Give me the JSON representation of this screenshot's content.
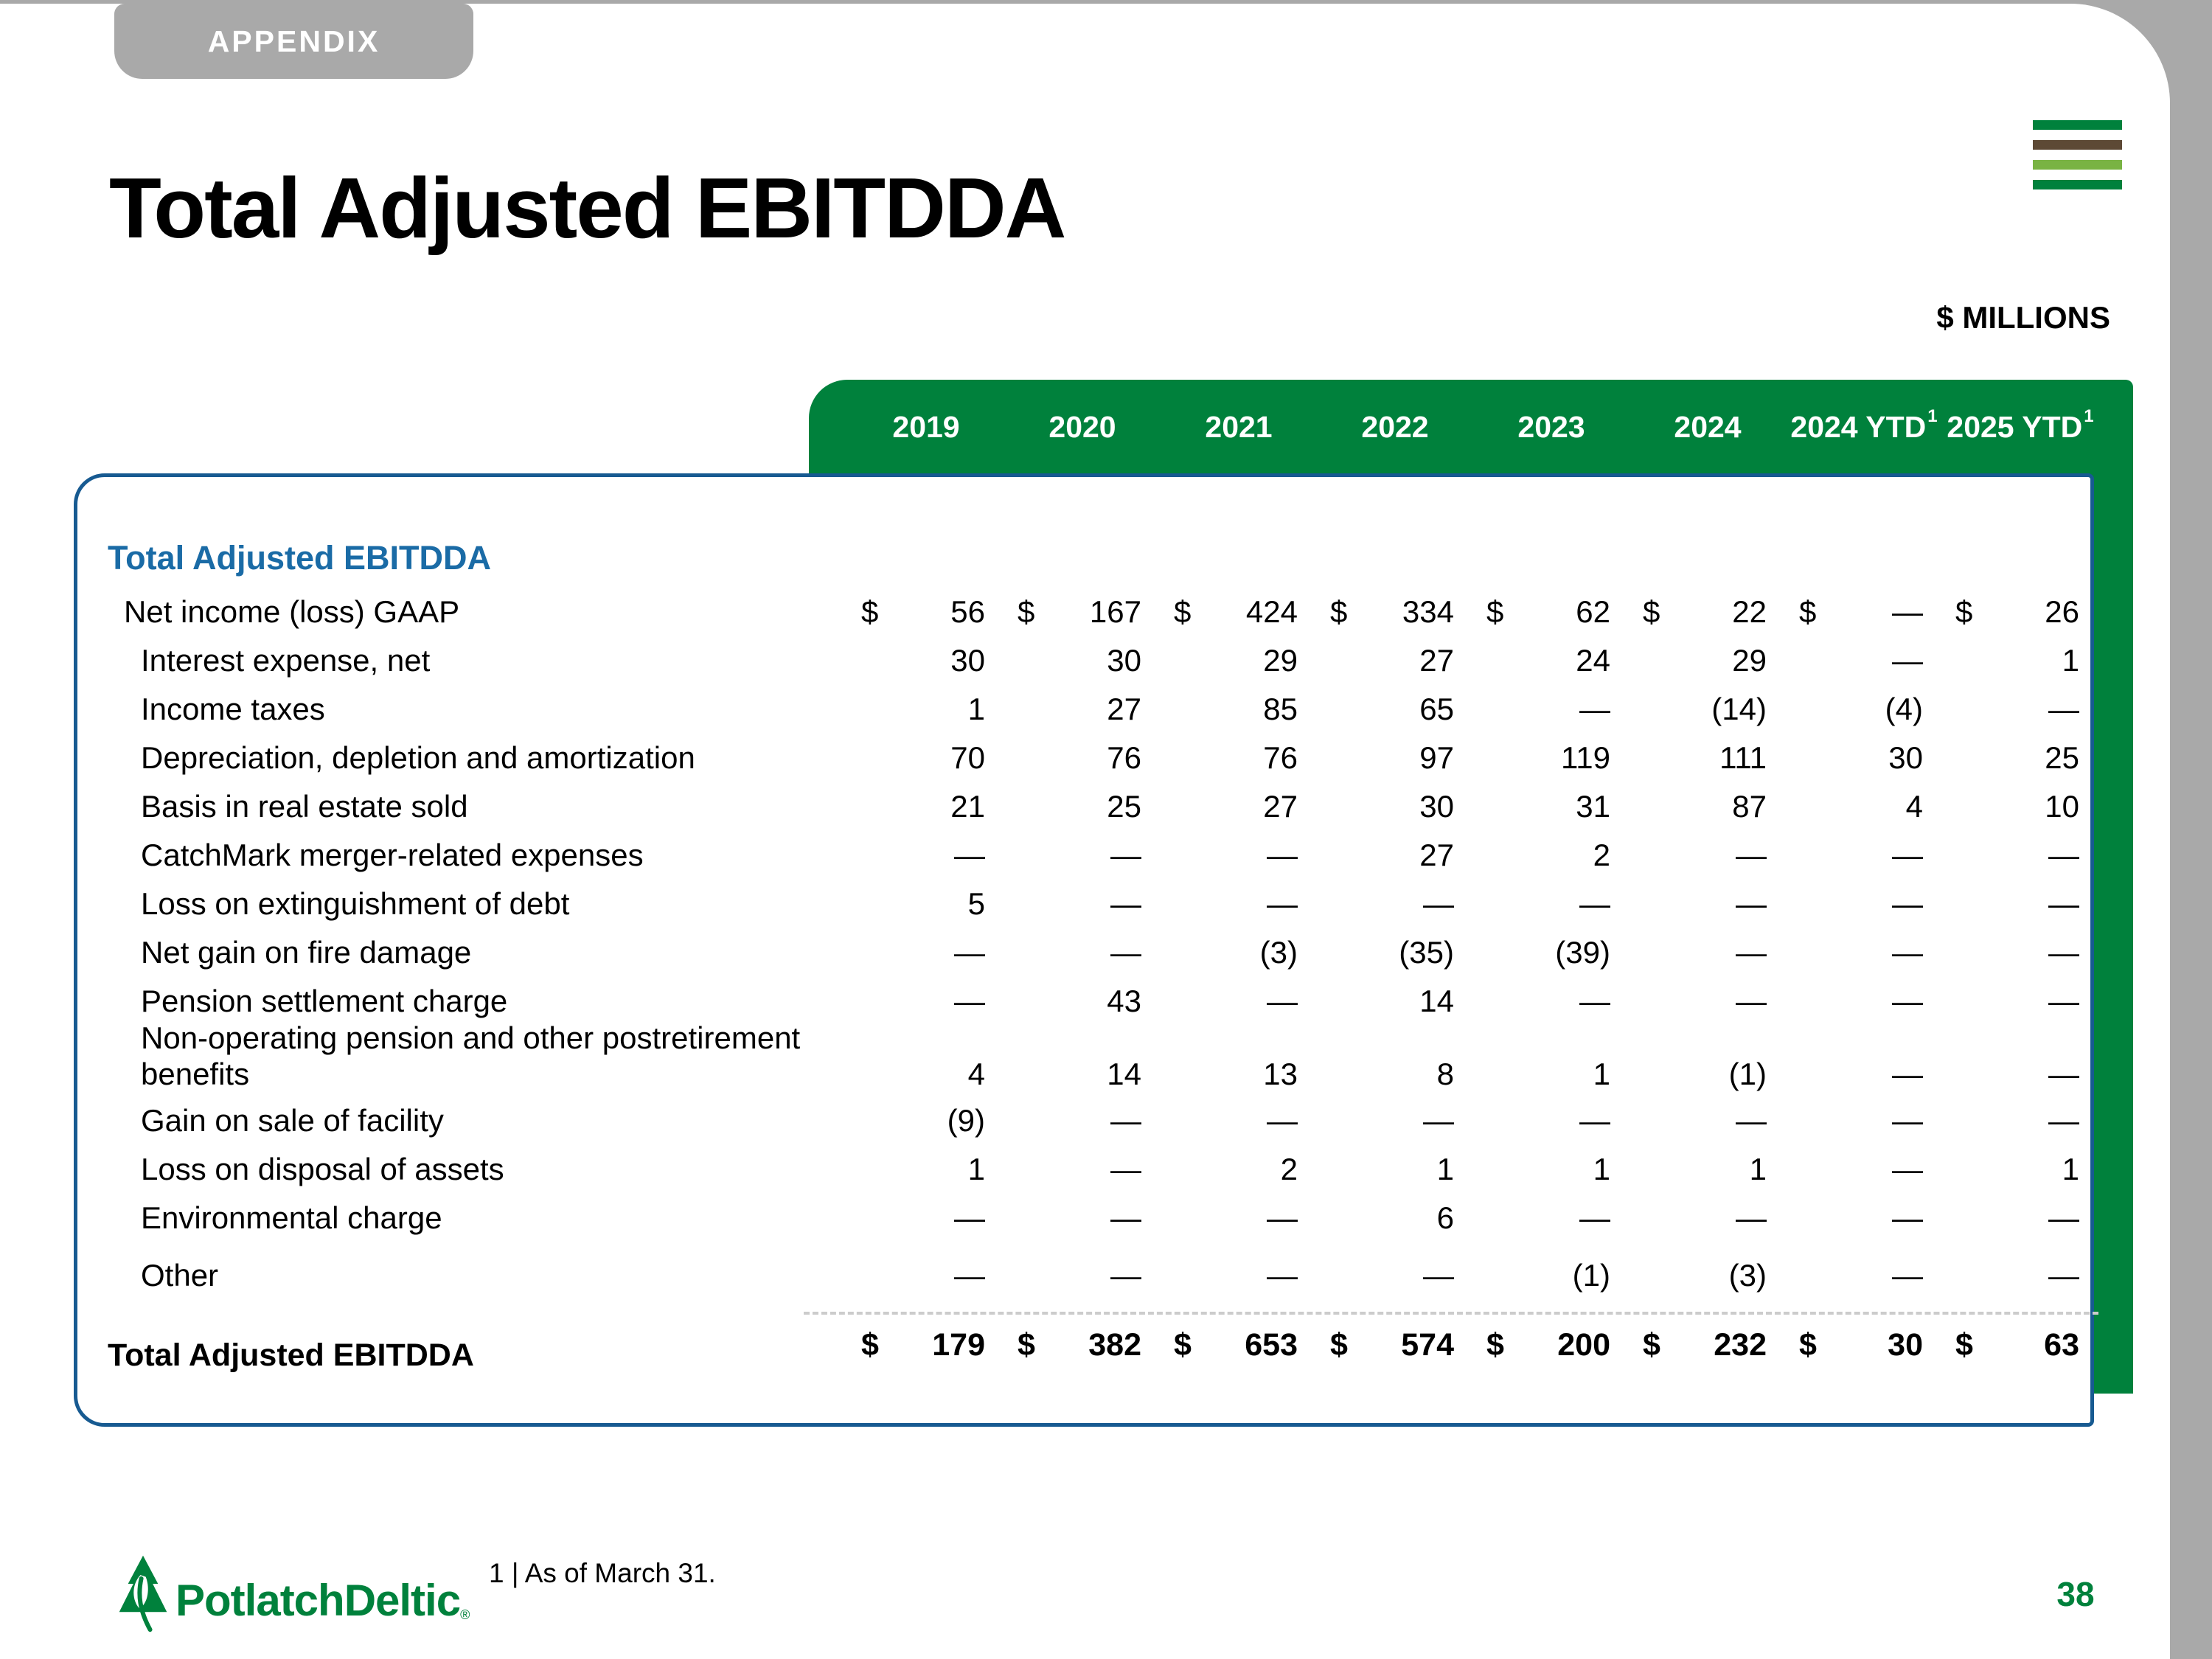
{
  "header": {
    "tab": "APPENDIX",
    "title": "Total Adjusted EBITDDA",
    "units": "$ MILLIONS"
  },
  "brand_icon": {
    "bars": [
      "green",
      "brown",
      "light_green",
      "green"
    ]
  },
  "colors": {
    "green": "#00813c",
    "light_green": "#79b343",
    "brown": "#5d4935",
    "gray": "#a9a9a9",
    "blue_border": "#175a91",
    "blue_heading": "#1a6ba6",
    "divider_gray": "#cccccc"
  },
  "table": {
    "section": "Total Adjusted EBITDDA",
    "currency_symbol": "$",
    "columns": [
      {
        "label": "2019",
        "sup": ""
      },
      {
        "label": "2020",
        "sup": ""
      },
      {
        "label": "2021",
        "sup": ""
      },
      {
        "label": "2022",
        "sup": ""
      },
      {
        "label": "2023",
        "sup": ""
      },
      {
        "label": "2024",
        "sup": ""
      },
      {
        "label": "2024 YTD",
        "sup": "1"
      },
      {
        "label": "2025 YTD",
        "sup": "1"
      }
    ],
    "rows": [
      {
        "label": "Net income (loss) GAAP",
        "indent": 1,
        "dollar": true,
        "values": [
          "56",
          "167",
          "424",
          "334",
          "62",
          "22",
          "—",
          "26"
        ]
      },
      {
        "label": "Interest expense, net",
        "indent": 2,
        "values": [
          "30",
          "30",
          "29",
          "27",
          "24",
          "29",
          "—",
          "1"
        ]
      },
      {
        "label": "Income taxes",
        "indent": 2,
        "values": [
          "1",
          "27",
          "85",
          "65",
          "—",
          "(14)",
          "(4)",
          "—"
        ]
      },
      {
        "label": "Depreciation, depletion and amortization",
        "indent": 2,
        "values": [
          "70",
          "76",
          "76",
          "97",
          "119",
          "111",
          "30",
          "25"
        ]
      },
      {
        "label": "Basis in real estate sold",
        "indent": 2,
        "values": [
          "21",
          "25",
          "27",
          "30",
          "31",
          "87",
          "4",
          "10"
        ]
      },
      {
        "label": "CatchMark merger-related expenses",
        "indent": 2,
        "values": [
          "—",
          "—",
          "—",
          "27",
          "2",
          "—",
          "—",
          "—"
        ]
      },
      {
        "label": "Loss on extinguishment of debt",
        "indent": 2,
        "values": [
          "5",
          "—",
          "—",
          "—",
          "—",
          "—",
          "—",
          "—"
        ]
      },
      {
        "label": "Net gain on fire damage",
        "indent": 2,
        "values": [
          "—",
          "—",
          "(3)",
          "(35)",
          "(39)",
          "—",
          "—",
          "—"
        ]
      },
      {
        "label": "Pension settlement charge",
        "indent": 2,
        "values": [
          "—",
          "43",
          "—",
          "14",
          "—",
          "—",
          "—",
          "—"
        ]
      },
      {
        "label": "Non-operating pension and other postretirement benefits",
        "indent": 2,
        "wrap": true,
        "values": [
          "4",
          "14",
          "13",
          "8",
          "1",
          "(1)",
          "—",
          "—"
        ]
      },
      {
        "label": "Gain on sale of facility",
        "indent": 2,
        "values": [
          "(9)",
          "—",
          "—",
          "—",
          "—",
          "—",
          "—",
          "—"
        ]
      },
      {
        "label": "Loss on disposal of assets",
        "indent": 2,
        "values": [
          "1",
          "—",
          "2",
          "1",
          "1",
          "1",
          "—",
          "1"
        ]
      },
      {
        "label": "Environmental charge",
        "indent": 2,
        "values": [
          "—",
          "—",
          "—",
          "6",
          "—",
          "—",
          "—",
          "—"
        ]
      },
      {
        "label": "Other",
        "indent": 2,
        "gap_before": true,
        "values": [
          "—",
          "—",
          "—",
          "—",
          "(1)",
          "(3)",
          "—",
          "—"
        ]
      }
    ],
    "total_row": {
      "label": "Total Adjusted EBITDDA",
      "dollar": true,
      "values": [
        "179",
        "382",
        "653",
        "574",
        "200",
        "232",
        "30",
        "63"
      ]
    }
  },
  "footer": {
    "logo_text": "PotlatchDeltic",
    "logo_reg": "®",
    "footnote": "1 | As of March 31.",
    "page_number": "38"
  }
}
